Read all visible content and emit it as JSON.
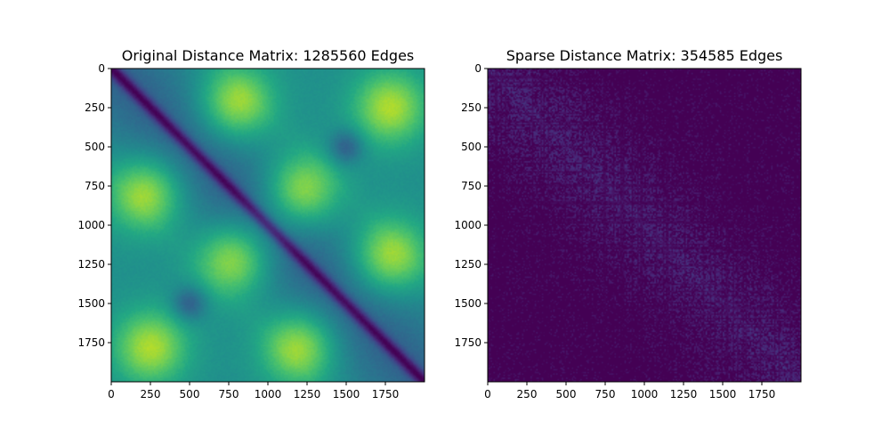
{
  "chart_data": [
    {
      "type": "heatmap",
      "title": "Original Distance Matrix: 1285560 Edges",
      "xlabel": "",
      "ylabel": "",
      "xlim": [
        0,
        2000
      ],
      "ylim": [
        2000,
        0
      ],
      "x_ticks": [
        0,
        250,
        500,
        750,
        1000,
        1250,
        1500,
        1750
      ],
      "y_ticks": [
        0,
        250,
        500,
        750,
        1000,
        1250,
        1500,
        1750
      ],
      "x_tick_labels": [
        "0",
        "250",
        "500",
        "750",
        "1000",
        "1250",
        "1500",
        "1750"
      ],
      "y_tick_labels": [
        "0",
        "250",
        "500",
        "750",
        "1000",
        "1250",
        "1500",
        "1750"
      ],
      "colormap": "viridis",
      "value_range": [
        0,
        1
      ],
      "grid_size": 2000,
      "pattern": {
        "diagonal_minimum": true,
        "high_blobs": [
          {
            "row": 220,
            "col": 800
          },
          {
            "row": 800,
            "col": 220
          },
          {
            "row": 1200,
            "col": 1780
          },
          {
            "row": 1780,
            "col": 1200
          },
          {
            "row": 250,
            "col": 1780
          },
          {
            "row": 1780,
            "col": 250
          },
          {
            "row": 780,
            "col": 1220
          },
          {
            "row": 1220,
            "col": 780
          }
        ],
        "low_blobs": [
          {
            "row": 500,
            "col": 1500
          },
          {
            "row": 1500,
            "col": 500
          }
        ]
      }
    },
    {
      "type": "heatmap",
      "title": "Sparse Distance Matrix: 354585 Edges",
      "xlabel": "",
      "ylabel": "",
      "xlim": [
        0,
        2000
      ],
      "ylim": [
        2000,
        0
      ],
      "x_ticks": [
        0,
        250,
        500,
        750,
        1000,
        1250,
        1500,
        1750
      ],
      "y_ticks": [
        0,
        250,
        500,
        750,
        1000,
        1250,
        1500,
        1750
      ],
      "x_tick_labels": [
        "0",
        "250",
        "500",
        "750",
        "1000",
        "1250",
        "1500",
        "1750"
      ],
      "y_tick_labels": [
        "0",
        "250",
        "500",
        "750",
        "1000",
        "1250",
        "1500",
        "1750"
      ],
      "colormap": "viridis",
      "value_range": [
        0,
        1
      ],
      "grid_size": 2000,
      "pattern": {
        "mostly_zero": true,
        "near_diagonal_nonzero": true
      }
    }
  ],
  "colors": {
    "viridis_low": "#440154",
    "viridis_high": "#fde725",
    "axis": "#000000",
    "background": "#ffffff"
  }
}
